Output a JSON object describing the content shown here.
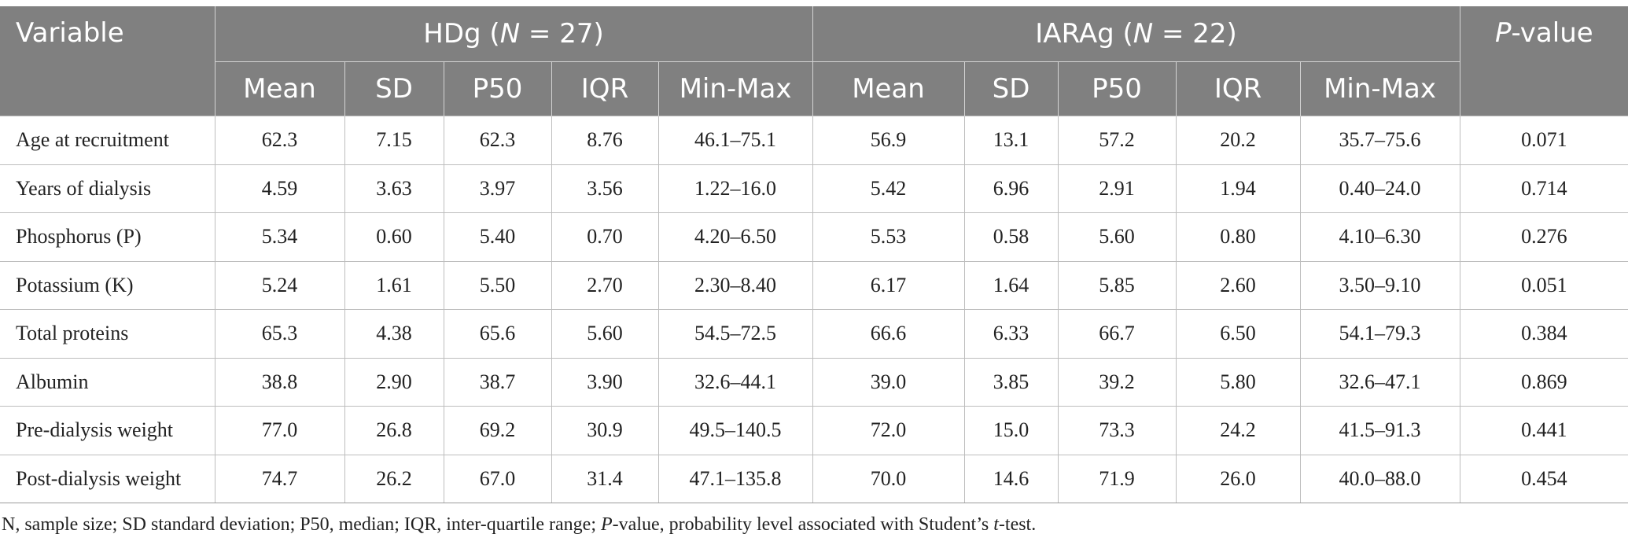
{
  "table": {
    "header": {
      "variable": "Variable",
      "groups": [
        {
          "name": "HDg",
          "n_label": "N",
          "n_eq": " = 27",
          "open": " (",
          "close": ")"
        },
        {
          "name": "IARAg",
          "n_label": "N",
          "n_eq": " = 22",
          "open": " (",
          "close": ")"
        }
      ],
      "pvalue_italic": "P",
      "pvalue_rest": "-value",
      "subcolumns": [
        "Mean",
        "SD",
        "P50",
        "IQR",
        "Min-Max"
      ]
    },
    "rows": [
      {
        "label": "Age at recruitment",
        "hdg": [
          "62.3",
          "7.15",
          "62.3",
          "8.76",
          "46.1–75.1"
        ],
        "iarag": [
          "56.9",
          "13.1",
          "57.2",
          "20.2",
          "35.7–75.6"
        ],
        "p": "0.071"
      },
      {
        "label": "Years of dialysis",
        "hdg": [
          "4.59",
          "3.63",
          "3.97",
          "3.56",
          "1.22–16.0"
        ],
        "iarag": [
          "5.42",
          "6.96",
          "2.91",
          "1.94",
          "0.40–24.0"
        ],
        "p": "0.714"
      },
      {
        "label": "Phosphorus (P)",
        "hdg": [
          "5.34",
          "0.60",
          "5.40",
          "0.70",
          "4.20–6.50"
        ],
        "iarag": [
          "5.53",
          "0.58",
          "5.60",
          "0.80",
          "4.10–6.30"
        ],
        "p": "0.276"
      },
      {
        "label": "Potassium (K)",
        "hdg": [
          "5.24",
          "1.61",
          "5.50",
          "2.70",
          "2.30–8.40"
        ],
        "iarag": [
          "6.17",
          "1.64",
          "5.85",
          "2.60",
          "3.50–9.10"
        ],
        "p": "0.051"
      },
      {
        "label": "Total proteins",
        "hdg": [
          "65.3",
          "4.38",
          "65.6",
          "5.60",
          "54.5–72.5"
        ],
        "iarag": [
          "66.6",
          "6.33",
          "66.7",
          "6.50",
          "54.1–79.3"
        ],
        "p": "0.384"
      },
      {
        "label": "Albumin",
        "hdg": [
          "38.8",
          "2.90",
          "38.7",
          "3.90",
          "32.6–44.1"
        ],
        "iarag": [
          "39.0",
          "3.85",
          "39.2",
          "5.80",
          "32.6–47.1"
        ],
        "p": "0.869"
      },
      {
        "label": "Pre-dialysis weight",
        "hdg": [
          "77.0",
          "26.8",
          "69.2",
          "30.9",
          "49.5–140.5"
        ],
        "iarag": [
          "72.0",
          "15.0",
          "73.3",
          "24.2",
          "41.5–91.3"
        ],
        "p": "0.441"
      },
      {
        "label": "Post-dialysis weight",
        "hdg": [
          "74.7",
          "26.2",
          "67.0",
          "31.4",
          "47.1–135.8"
        ],
        "iarag": [
          "70.0",
          "14.6",
          "71.9",
          "26.0",
          "40.0–88.0"
        ],
        "p": "0.454"
      }
    ]
  },
  "footnote": {
    "part1": "N, sample size; SD standard deviation; P50, median; IQR, inter-quartile range; ",
    "p_italic": "P",
    "part2": "-value, probability level associated with Student’s ",
    "t_italic": "t",
    "part3": "-test."
  },
  "colors": {
    "header_bg": "#808080",
    "header_text": "#ffffff",
    "grid_line": "#bdbdbd",
    "body_text": "#222222"
  }
}
